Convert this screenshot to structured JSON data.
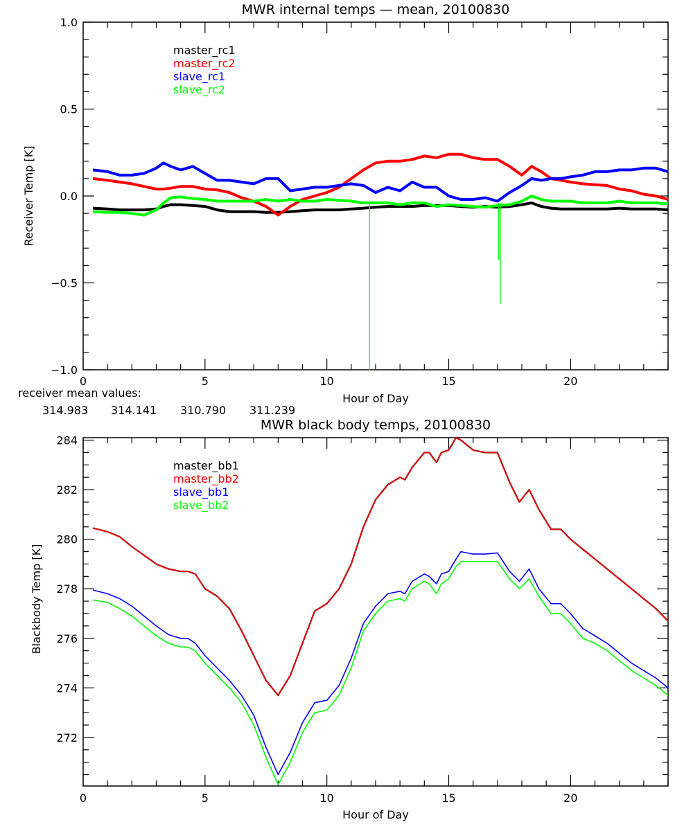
{
  "chart_data": [
    {
      "type": "line",
      "title": "MWR internal temps — mean, 20100830",
      "xlabel": "Hour of Day",
      "ylabel": "Receiver Temp [K]",
      "xlim": [
        0,
        24
      ],
      "ylim": [
        -1.0,
        1.0
      ],
      "xticks": [
        0,
        5,
        10,
        15,
        20
      ],
      "xtick_labels": [
        "0",
        "5",
        "10",
        "15",
        "20"
      ],
      "yticks": [
        -1.0,
        -0.5,
        0.0,
        0.5,
        1.0
      ],
      "ytick_labels": [
        "−1.0",
        "−0.5",
        "0.0",
        "0.5",
        "1.0"
      ],
      "legend_position": "top-left",
      "x": [
        0.4,
        1,
        1.5,
        2,
        2.5,
        3,
        3.3,
        3.6,
        4,
        4.5,
        5,
        5.5,
        6,
        6.5,
        7,
        7.5,
        8,
        8.5,
        9,
        9.5,
        10,
        10.5,
        11,
        11.5,
        12,
        12.5,
        13,
        13.5,
        14,
        14.5,
        15,
        15.5,
        16,
        16.5,
        17,
        17.5,
        18,
        18.4,
        18.8,
        19.2,
        19.6,
        20,
        20.5,
        21,
        21.5,
        22,
        22.5,
        23,
        23.5,
        24
      ],
      "series": [
        {
          "name": "master_rc1",
          "color": "#000000",
          "values": [
            -0.07,
            -0.075,
            -0.08,
            -0.08,
            -0.08,
            -0.075,
            -0.06,
            -0.05,
            -0.05,
            -0.055,
            -0.06,
            -0.08,
            -0.09,
            -0.09,
            -0.09,
            -0.095,
            -0.095,
            -0.09,
            -0.085,
            -0.08,
            -0.08,
            -0.08,
            -0.075,
            -0.07,
            -0.065,
            -0.06,
            -0.06,
            -0.06,
            -0.055,
            -0.055,
            -0.055,
            -0.06,
            -0.065,
            -0.06,
            -0.065,
            -0.06,
            -0.05,
            -0.04,
            -0.06,
            -0.07,
            -0.075,
            -0.075,
            -0.075,
            -0.075,
            -0.075,
            -0.07,
            -0.075,
            -0.075,
            -0.075,
            -0.08
          ]
        },
        {
          "name": "master_rc2",
          "color": "#ff0000",
          "values": [
            0.1,
            0.09,
            0.08,
            0.07,
            0.055,
            0.04,
            0.04,
            0.045,
            0.055,
            0.055,
            0.04,
            0.035,
            0.02,
            -0.01,
            -0.03,
            -0.06,
            -0.11,
            -0.06,
            -0.02,
            0.0,
            0.02,
            0.05,
            0.1,
            0.15,
            0.19,
            0.2,
            0.2,
            0.21,
            0.23,
            0.22,
            0.24,
            0.24,
            0.22,
            0.21,
            0.21,
            0.17,
            0.12,
            0.17,
            0.14,
            0.1,
            0.09,
            0.08,
            0.07,
            0.065,
            0.06,
            0.04,
            0.03,
            0.01,
            0.0,
            -0.02
          ]
        },
        {
          "name": "slave_rc1",
          "color": "#0000ff",
          "values": [
            0.15,
            0.14,
            0.12,
            0.12,
            0.13,
            0.16,
            0.19,
            0.17,
            0.15,
            0.17,
            0.13,
            0.09,
            0.09,
            0.08,
            0.07,
            0.1,
            0.1,
            0.03,
            0.04,
            0.05,
            0.05,
            0.06,
            0.07,
            0.06,
            0.02,
            0.05,
            0.03,
            0.08,
            0.05,
            0.05,
            0.0,
            -0.02,
            -0.02,
            -0.01,
            -0.03,
            0.02,
            0.06,
            0.1,
            0.09,
            0.1,
            0.1,
            0.11,
            0.12,
            0.14,
            0.14,
            0.15,
            0.15,
            0.16,
            0.16,
            0.14
          ]
        },
        {
          "name": "slave_rc2",
          "color": "#00ff00",
          "values": [
            -0.09,
            -0.095,
            -0.095,
            -0.1,
            -0.11,
            -0.08,
            -0.04,
            -0.01,
            -0.005,
            -0.015,
            -0.02,
            -0.03,
            -0.03,
            -0.03,
            -0.03,
            -0.02,
            -0.03,
            -0.02,
            -0.03,
            -0.03,
            -0.02,
            -0.025,
            -0.03,
            -0.04,
            -0.04,
            -0.04,
            -0.05,
            -0.04,
            -0.04,
            -0.06,
            -0.05,
            -0.055,
            -0.06,
            -0.065,
            -0.055,
            -0.05,
            -0.03,
            0.0,
            -0.02,
            -0.03,
            -0.03,
            -0.03,
            -0.04,
            -0.04,
            -0.04,
            -0.03,
            -0.04,
            -0.04,
            -0.04,
            -0.045
          ]
        }
      ],
      "spikes": [
        {
          "series": "slave_rc2",
          "x": 11.75,
          "y_min": -1.0
        },
        {
          "series": "slave_rc2",
          "x": 17.05,
          "y_min": -0.37
        },
        {
          "series": "slave_rc2",
          "x": 17.12,
          "y_min": -0.62
        }
      ],
      "annotations": {
        "label": "receiver mean values:",
        "values": [
          {
            "text": "314.983",
            "color": "#000000"
          },
          {
            "text": "314.141",
            "color": "#ff0000"
          },
          {
            "text": "310.790",
            "color": "#0000ff"
          },
          {
            "text": "311.239",
            "color": "#00ff00"
          }
        ]
      }
    },
    {
      "type": "line",
      "title": "MWR black body temps, 20100830",
      "xlabel": "Hour of Day",
      "ylabel": "Blackbody Temp [K]",
      "xlim": [
        0,
        24
      ],
      "ylim": [
        270.04,
        284.1
      ],
      "xticks": [
        0,
        5,
        10,
        15,
        20
      ],
      "xtick_labels": [
        "0",
        "5",
        "10",
        "15",
        "20"
      ],
      "yticks": [
        272,
        274,
        276,
        278,
        280,
        282,
        284
      ],
      "ytick_labels": [
        "272",
        "274",
        "276",
        "278",
        "280",
        "282",
        "284"
      ],
      "legend_position": "top-left",
      "x": [
        0.4,
        1,
        1.5,
        2,
        2.5,
        3,
        3.5,
        4,
        4.3,
        4.6,
        5,
        5.5,
        6,
        6.5,
        7,
        7.5,
        8,
        8.5,
        9,
        9.5,
        10,
        10.5,
        11,
        11.5,
        12,
        12.5,
        13,
        13.2,
        13.5,
        14,
        14.2,
        14.5,
        14.7,
        15,
        15.3,
        15.5,
        16,
        16.5,
        17,
        17.5,
        17.9,
        18.3,
        18.7,
        19.2,
        19.6,
        20,
        20.5,
        21,
        21.5,
        22,
        22.5,
        23,
        23.5,
        24
      ],
      "series": [
        {
          "name": "master_bb1",
          "color": "#000000",
          "values": [
            280.45,
            280.3,
            280.1,
            279.7,
            279.35,
            279.0,
            278.8,
            278.7,
            278.7,
            278.6,
            278.0,
            277.7,
            277.2,
            276.3,
            275.3,
            274.3,
            273.7,
            274.5,
            275.8,
            277.1,
            277.4,
            278.0,
            279.0,
            280.5,
            281.6,
            282.2,
            282.5,
            282.4,
            282.9,
            283.5,
            283.5,
            283.1,
            283.5,
            283.6,
            284.1,
            284.0,
            283.6,
            283.5,
            283.5,
            282.3,
            281.5,
            282.0,
            281.2,
            280.4,
            280.4,
            280.0,
            279.6,
            279.2,
            278.8,
            278.4,
            278.0,
            277.6,
            277.2,
            276.7
          ]
        },
        {
          "name": "master_bb2",
          "color": "#ff0000",
          "values": [
            280.45,
            280.3,
            280.1,
            279.7,
            279.35,
            279.0,
            278.8,
            278.7,
            278.7,
            278.6,
            278.0,
            277.7,
            277.2,
            276.3,
            275.3,
            274.3,
            273.7,
            274.5,
            275.8,
            277.1,
            277.4,
            278.0,
            279.0,
            280.5,
            281.6,
            282.2,
            282.5,
            282.4,
            282.9,
            283.5,
            283.5,
            283.1,
            283.5,
            283.6,
            284.1,
            284.0,
            283.6,
            283.5,
            283.5,
            282.3,
            281.5,
            282.0,
            281.2,
            280.4,
            280.4,
            280.0,
            279.6,
            279.2,
            278.8,
            278.4,
            278.0,
            277.6,
            277.2,
            276.7
          ]
        },
        {
          "name": "slave_bb1",
          "color": "#0000ff",
          "values": [
            277.95,
            277.8,
            277.6,
            277.3,
            276.9,
            276.5,
            276.15,
            276.0,
            276.0,
            275.8,
            275.3,
            274.8,
            274.3,
            273.7,
            272.9,
            271.6,
            270.5,
            271.4,
            272.6,
            273.4,
            273.5,
            274.1,
            275.2,
            276.6,
            277.3,
            277.8,
            277.9,
            277.8,
            278.3,
            278.6,
            278.5,
            278.2,
            278.6,
            278.7,
            279.2,
            279.5,
            279.4,
            279.4,
            279.45,
            278.7,
            278.3,
            278.8,
            278.0,
            277.4,
            277.4,
            277.0,
            276.4,
            276.1,
            275.8,
            275.4,
            275.0,
            274.7,
            274.4,
            274.0
          ]
        },
        {
          "name": "slave_bb2",
          "color": "#00ff00",
          "values": [
            277.55,
            277.45,
            277.2,
            276.9,
            276.5,
            276.1,
            275.8,
            275.65,
            275.65,
            275.5,
            275.0,
            274.5,
            274.0,
            273.4,
            272.5,
            271.2,
            270.1,
            271.0,
            272.2,
            273.0,
            273.1,
            273.7,
            274.8,
            276.3,
            277.0,
            277.5,
            277.6,
            277.5,
            278.0,
            278.3,
            278.2,
            277.8,
            278.2,
            278.4,
            278.9,
            279.1,
            279.1,
            279.1,
            279.1,
            278.4,
            278.0,
            278.4,
            277.7,
            277.0,
            277.0,
            276.6,
            276.0,
            275.8,
            275.5,
            275.1,
            274.7,
            274.4,
            274.1,
            273.7
          ]
        }
      ]
    }
  ]
}
